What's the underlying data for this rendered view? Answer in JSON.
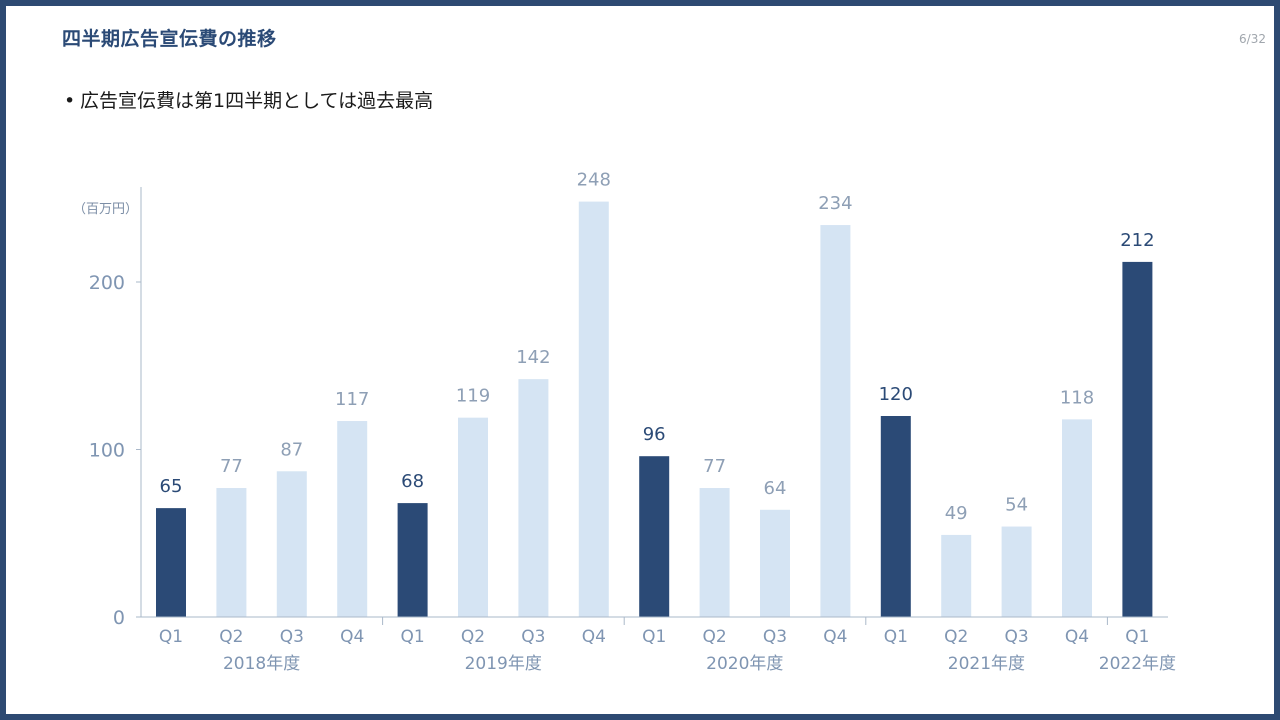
{
  "slide": {
    "title": "四半期広告宣伝費の推移",
    "page_number": "6/32",
    "bullet": "広告宣伝費は第1四半期としては過去最高"
  },
  "colors": {
    "highlight": "#2b4a76",
    "normal": "#d5e4f3",
    "axis_text": "#7f95b2",
    "label_highlight": "#2b4a76",
    "label_normal": "#8e9fb5"
  },
  "chart_data": {
    "type": "bar",
    "unit_label": "（百万円）",
    "categories": [
      "Q1",
      "Q2",
      "Q3",
      "Q4",
      "Q1",
      "Q2",
      "Q3",
      "Q4",
      "Q1",
      "Q2",
      "Q3",
      "Q4",
      "Q1",
      "Q2",
      "Q3",
      "Q4",
      "Q1"
    ],
    "values": [
      65,
      77,
      87,
      117,
      68,
      119,
      142,
      248,
      96,
      77,
      64,
      234,
      120,
      49,
      54,
      118,
      212
    ],
    "highlighted": [
      true,
      false,
      false,
      false,
      true,
      false,
      false,
      false,
      true,
      false,
      false,
      false,
      true,
      false,
      false,
      false,
      true
    ],
    "groups": [
      {
        "label": "2018年度",
        "count": 4
      },
      {
        "label": "2019年度",
        "count": 4
      },
      {
        "label": "2020年度",
        "count": 4
      },
      {
        "label": "2021年度",
        "count": 4
      },
      {
        "label": "2022年度",
        "count": 1
      }
    ],
    "yticks": [
      0,
      100,
      200
    ],
    "ylim": [
      0,
      258
    ]
  }
}
